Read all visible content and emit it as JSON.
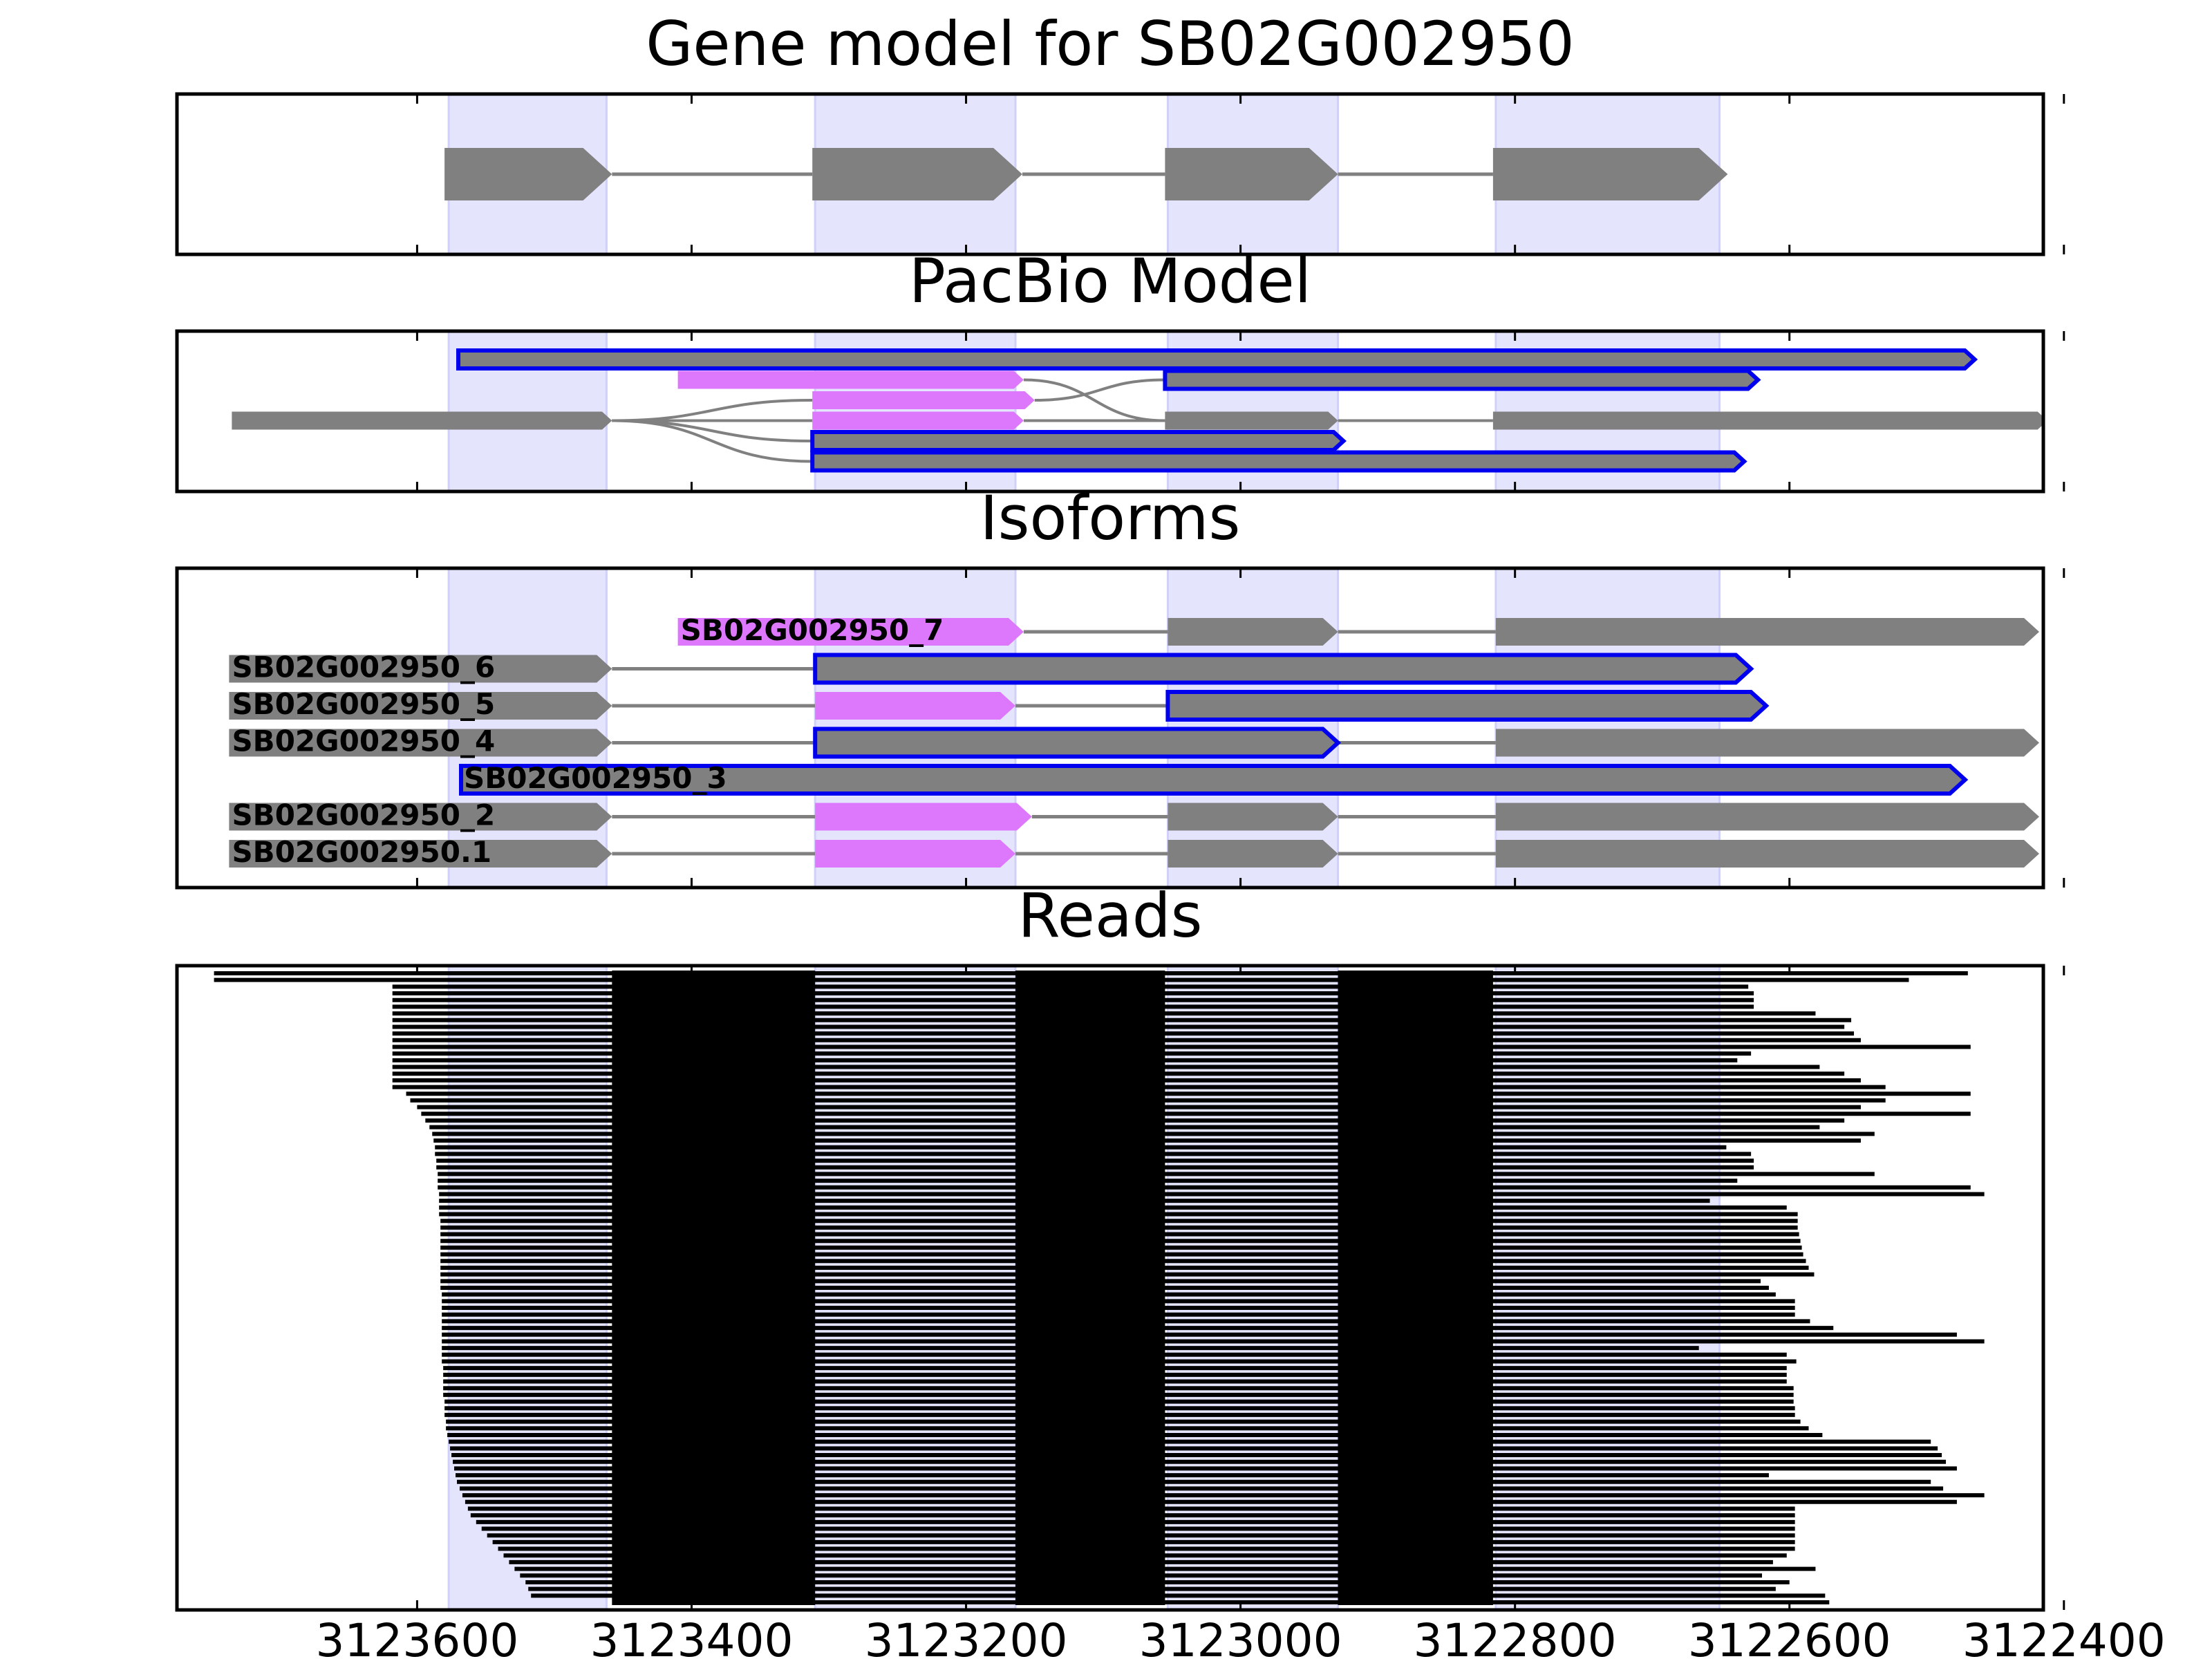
{
  "figure": {
    "panel_titles": [
      "Gene model for SB02G002950",
      "PacBio Model",
      "Isoforms",
      "Reads"
    ]
  },
  "chart_data": {
    "type": "gene-structure",
    "x_axis": {
      "reversed": true,
      "range": [
        3123775,
        3122415
      ],
      "ticks": [
        3123600,
        3123400,
        3123200,
        3123000,
        3122800,
        3122600,
        3122400
      ],
      "tick_labels": [
        "3123600",
        "3123400",
        "3123200",
        "3123000",
        "3122800",
        "3122600",
        "3122400"
      ]
    },
    "exon_highlights": [
      [
        3123577,
        3123462
      ],
      [
        3123310,
        3123164
      ],
      [
        3123053,
        3122929
      ],
      [
        3122814,
        3122651
      ]
    ],
    "colors": {
      "highlight": "#e4e4fd",
      "exon": "#808080",
      "alt_exon": "#dd77fc",
      "novel_outline": "#0000ee",
      "intron": "#808080",
      "read": "#000000"
    },
    "gene_model": {
      "exons": [
        [
          3123580,
          3123458
        ],
        [
          3123312,
          3123159
        ],
        [
          3123055,
          3122929
        ],
        [
          3122816,
          3122645
        ]
      ]
    },
    "pacbio_model": {
      "rows": [
        {
          "row": 0,
          "exons": [
            {
              "s": 3123570,
              "e": 3122465,
              "style": "novel"
            }
          ]
        },
        {
          "row": 1,
          "exons": [
            {
              "s": 3123410,
              "e": 3123158,
              "style": "alt"
            },
            {
              "s": 3123055,
              "e": 3122623,
              "style": "novel"
            }
          ]
        },
        {
          "row": 2,
          "exons": [
            {
              "s": 3123312,
              "e": 3123150,
              "style": "alt"
            }
          ]
        },
        {
          "row": 3,
          "exons": [
            {
              "s": 3123735,
              "e": 3123458,
              "style": "normal"
            },
            {
              "s": 3123312,
              "e": 3123158,
              "style": "alt"
            },
            {
              "s": 3123055,
              "e": 3122929,
              "style": "normal"
            },
            {
              "s": 3122816,
              "e": 3122412,
              "style": "normal"
            }
          ]
        },
        {
          "row": 4,
          "exons": [
            {
              "s": 3123312,
              "e": 3122925,
              "style": "novel"
            }
          ]
        },
        {
          "row": 5,
          "exons": [
            {
              "s": 3123312,
              "e": 3122633,
              "style": "novel"
            }
          ]
        }
      ]
    },
    "isoforms": [
      {
        "name": "SB02G002950_7",
        "exons": [
          {
            "s": 3123410,
            "e": 3123158,
            "style": "alt"
          },
          {
            "s": 3123053,
            "e": 3122929,
            "style": "normal"
          },
          {
            "s": 3122814,
            "e": 3122418,
            "style": "normal"
          }
        ]
      },
      {
        "name": "SB02G002950_6",
        "exons": [
          {
            "s": 3123737,
            "e": 3123458,
            "style": "normal"
          },
          {
            "s": 3123310,
            "e": 3122628,
            "style": "novel"
          }
        ]
      },
      {
        "name": "SB02G002950_5",
        "exons": [
          {
            "s": 3123737,
            "e": 3123458,
            "style": "normal"
          },
          {
            "s": 3123310,
            "e": 3123164,
            "style": "alt"
          },
          {
            "s": 3123053,
            "e": 3122617,
            "style": "novel"
          }
        ]
      },
      {
        "name": "SB02G002950_4",
        "exons": [
          {
            "s": 3123737,
            "e": 3123458,
            "style": "normal"
          },
          {
            "s": 3123310,
            "e": 3122929,
            "style": "novel"
          },
          {
            "s": 3122814,
            "e": 3122418,
            "style": "normal"
          }
        ]
      },
      {
        "name": "SB02G002950_3",
        "exons": [
          {
            "s": 3123568,
            "e": 3122472,
            "style": "novel"
          }
        ]
      },
      {
        "name": "SB02G002950_2",
        "exons": [
          {
            "s": 3123737,
            "e": 3123458,
            "style": "normal"
          },
          {
            "s": 3123310,
            "e": 3123152,
            "style": "alt"
          },
          {
            "s": 3123053,
            "e": 3122929,
            "style": "normal"
          },
          {
            "s": 3122814,
            "e": 3122418,
            "style": "normal"
          }
        ]
      },
      {
        "name": "SB02G002950.1",
        "exons": [
          {
            "s": 3123737,
            "e": 3123458,
            "style": "normal"
          },
          {
            "s": 3123310,
            "e": 3123164,
            "style": "alt"
          },
          {
            "s": 3123053,
            "e": 3122929,
            "style": "normal"
          },
          {
            "s": 3122814,
            "e": 3122418,
            "style": "normal"
          }
        ]
      }
    ],
    "reads": {
      "blocks": [
        [
          3123458,
          3123310
        ],
        [
          3123164,
          3123055
        ],
        [
          3122929,
          3122816
        ]
      ],
      "left": [
        3123748,
        3123748,
        3123618,
        3123618,
        3123618,
        3123618,
        3123618,
        3123618,
        3123618,
        3123618,
        3123618,
        3123618,
        3123618,
        3123618,
        3123618,
        3123618,
        3123618,
        3123618,
        3123608,
        3123605,
        3123600,
        3123597,
        3123594,
        3123591,
        3123589,
        3123588,
        3123587,
        3123587,
        3123586,
        3123586,
        3123585,
        3123585,
        3123585,
        3123584,
        3123584,
        3123584,
        3123584,
        3123583,
        3123583,
        3123583,
        3123583,
        3123583,
        3123583,
        3123583,
        3123583,
        3123583,
        3123583,
        3123583,
        3123582,
        3123582,
        3123582,
        3123582,
        3123582,
        3123582,
        3123582,
        3123582,
        3123582,
        3123582,
        3123582,
        3123581,
        3123581,
        3123581,
        3123581,
        3123581,
        3123580,
        3123580,
        3123580,
        3123579,
        3123579,
        3123578,
        3123577,
        3123576,
        3123575,
        3123574,
        3123573,
        3123572,
        3123571,
        3123569,
        3123567,
        3123565,
        3123563,
        3123561,
        3123557,
        3123553,
        3123549,
        3123545,
        3123541,
        3123537,
        3123533,
        3123529,
        3123525,
        3123521,
        3123519,
        3123517,
        3123406
      ],
      "right": [
        3122470,
        3122513,
        3122630,
        3122626,
        3122626,
        3122626,
        3122581,
        3122555,
        3122560,
        3122553,
        3122548,
        3122468,
        3122628,
        3122638,
        3122578,
        3122560,
        3122548,
        3122530,
        3122468,
        3122530,
        3122548,
        3122468,
        3122560,
        3122578,
        3122538,
        3122548,
        3122646,
        3122628,
        3122626,
        3122626,
        3122538,
        3122638,
        3122468,
        3122458,
        3122658,
        3122602,
        3122594,
        3122594,
        3122594,
        3122593,
        3122592,
        3122591,
        3122590,
        3122588,
        3122586,
        3122582,
        3122621,
        3122615,
        3122610,
        3122596,
        3122596,
        3122596,
        3122585,
        3122568,
        3122478,
        3122458,
        3122666,
        3122602,
        3122595,
        3122602,
        3122602,
        3122602,
        3122597,
        3122597,
        3122597,
        3122596,
        3122596,
        3122592,
        3122586,
        3122576,
        3122497,
        3122492,
        3122489,
        3122486,
        3122478,
        3122615,
        3122497,
        3122488,
        3122458,
        3122478,
        3122596,
        3122596,
        3122596,
        3122596,
        3122596,
        3122596,
        3122596,
        3122602,
        3122612,
        3122581,
        3122620,
        3122600,
        3122610,
        3122574,
        3122571
      ]
    }
  }
}
